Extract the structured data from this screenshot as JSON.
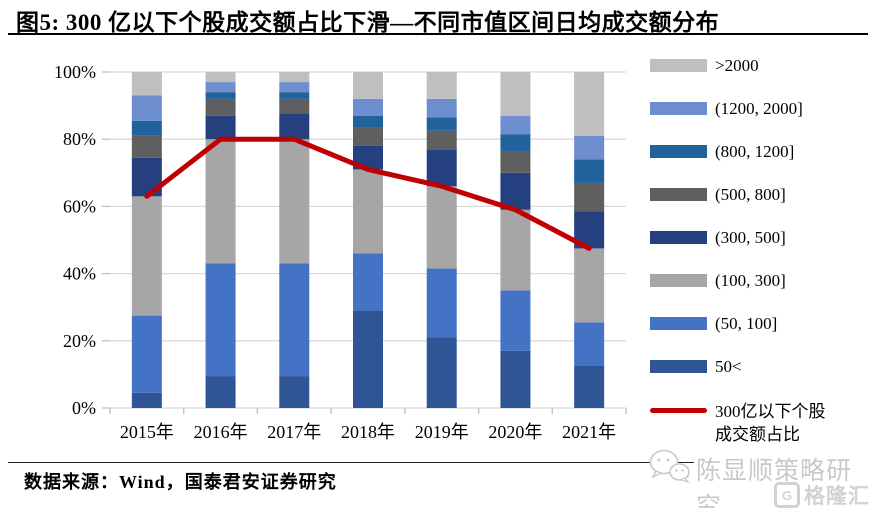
{
  "header": {
    "title": "图5: 300 亿以下个股成交额占比下滑—不同市值区间日均成交额分布"
  },
  "chart_data": {
    "type": "stacked_bar_line",
    "title": "300 亿以下个股成交额占比下滑—不同市值区间日均成交额分布",
    "categories": [
      "2015年",
      "2016年",
      "2017年",
      "2018年",
      "2019年",
      "2020年",
      "2021年"
    ],
    "unit": "percent share of daily average turnover by market-cap bucket (亿元)",
    "series": [
      {
        "name": "50<",
        "color": "#2F5597",
        "values": [
          4.5,
          9.5,
          9.5,
          29,
          21,
          17,
          12.5
        ]
      },
      {
        "name": "(50, 100]",
        "color": "#4472C4",
        "values": [
          23,
          33.5,
          33.5,
          17,
          20.5,
          18,
          13
        ]
      },
      {
        "name": "(100, 300]",
        "color": "#A6A6A6",
        "values": [
          35.5,
          37,
          37,
          25,
          24.5,
          24,
          22
        ]
      },
      {
        "name": "(300, 500]",
        "color": "#24407E",
        "values": [
          11.5,
          7,
          7.5,
          7,
          11,
          11,
          11
        ]
      },
      {
        "name": "(500, 800]",
        "color": "#5F5F5F",
        "values": [
          6.5,
          5,
          4.5,
          5.5,
          5.5,
          6.5,
          8.5
        ]
      },
      {
        "name": "(800, 1200]",
        "color": "#21629C",
        "values": [
          4.5,
          2,
          2,
          3.5,
          4,
          5,
          7
        ]
      },
      {
        "name": "(1200, 2000]",
        "color": "#6D8FD0",
        "values": [
          7.5,
          3,
          3,
          5,
          5.5,
          5.5,
          7
        ]
      },
      {
        "name": ">2000",
        "color": "#BFBFBF",
        "values": [
          7,
          3,
          3,
          8,
          8,
          13,
          19
        ]
      }
    ],
    "line": {
      "name": "300亿以下个股成交额占比",
      "label_line1": "300亿以下个股",
      "label_line2": "成交额占比",
      "color": "#C00000",
      "values": [
        63,
        80,
        80,
        71,
        66,
        59,
        47.5
      ]
    },
    "y_ticks": [
      "0%",
      "20%",
      "40%",
      "60%",
      "80%",
      "100%"
    ],
    "ylim": [
      0,
      100
    ],
    "grid": "horizontal",
    "legend_position": "right"
  },
  "footer": {
    "source": "数据来源：Wind，国泰君安证券研究"
  },
  "watermark": {
    "text": "陈显顺策略研究",
    "logo_text": "格隆汇"
  }
}
